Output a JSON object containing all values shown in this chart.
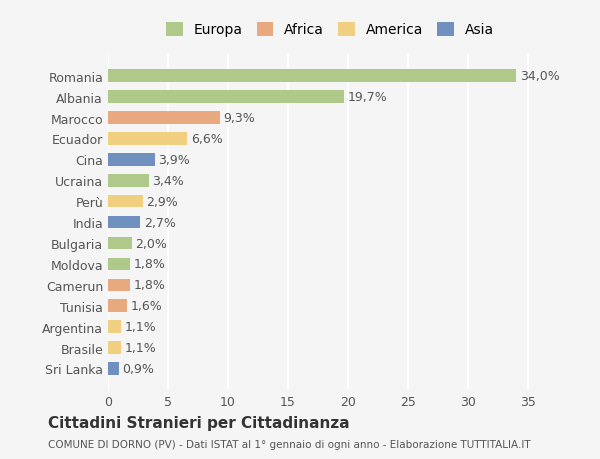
{
  "countries": [
    "Romania",
    "Albania",
    "Marocco",
    "Ecuador",
    "Cina",
    "Ucraina",
    "Perù",
    "India",
    "Bulgaria",
    "Moldova",
    "Camerun",
    "Tunisia",
    "Argentina",
    "Brasile",
    "Sri Lanka"
  ],
  "values": [
    34.0,
    19.7,
    9.3,
    6.6,
    3.9,
    3.4,
    2.9,
    2.7,
    2.0,
    1.8,
    1.8,
    1.6,
    1.1,
    1.1,
    0.9
  ],
  "labels": [
    "34,0%",
    "19,7%",
    "9,3%",
    "6,6%",
    "3,9%",
    "3,4%",
    "2,9%",
    "2,7%",
    "2,0%",
    "1,8%",
    "1,8%",
    "1,6%",
    "1,1%",
    "1,1%",
    "0,9%"
  ],
  "continents": [
    "Europa",
    "Europa",
    "Africa",
    "America",
    "Asia",
    "Europa",
    "America",
    "Asia",
    "Europa",
    "Europa",
    "Africa",
    "Africa",
    "America",
    "America",
    "Asia"
  ],
  "continent_colors": {
    "Europa": "#aec98a",
    "Africa": "#e8a97e",
    "America": "#f0d080",
    "Asia": "#7090c0"
  },
  "legend_order": [
    "Europa",
    "Africa",
    "America",
    "Asia"
  ],
  "legend_colors": [
    "#aec98a",
    "#e8a97e",
    "#f0d080",
    "#7090c0"
  ],
  "background_color": "#f5f5f5",
  "xlim": [
    0,
    37
  ],
  "xticks": [
    0,
    5,
    10,
    15,
    20,
    25,
    30,
    35
  ],
  "title": "Cittadini Stranieri per Cittadinanza",
  "subtitle": "COMUNE DI DORNO (PV) - Dati ISTAT al 1° gennaio di ogni anno - Elaborazione TUTTITALIA.IT",
  "bar_height": 0.6,
  "grid_color": "#ffffff",
  "label_fontsize": 9,
  "tick_fontsize": 9
}
